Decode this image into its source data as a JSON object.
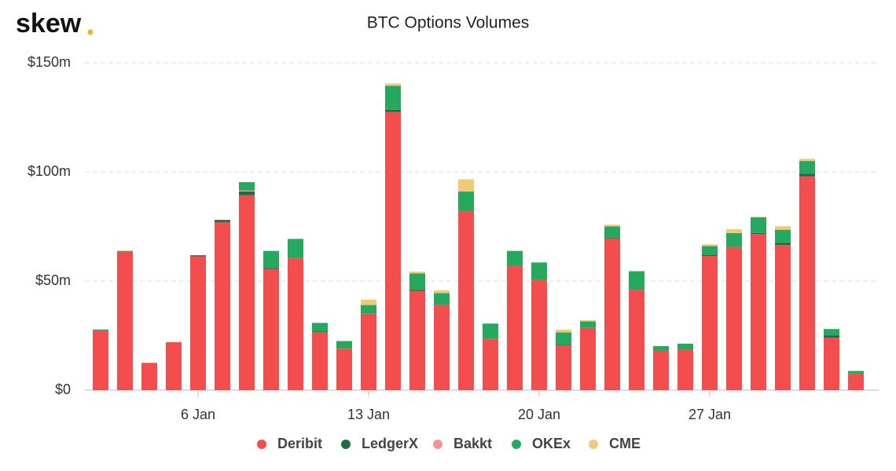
{
  "brand": "skew",
  "chart_data": {
    "type": "bar",
    "stacked": true,
    "title": "BTC Options Volumes",
    "categories": [
      null,
      null,
      null,
      null,
      "6 Jan",
      null,
      null,
      null,
      null,
      null,
      null,
      "13 Jan",
      null,
      null,
      null,
      null,
      null,
      null,
      "20 Jan",
      null,
      null,
      null,
      null,
      null,
      null,
      "27 Jan",
      null,
      null,
      null,
      null,
      null,
      null
    ],
    "series": [
      {
        "name": "Deribit",
        "color": "#f44d4d",
        "values": [
          27.3,
          63.5,
          12.5,
          22,
          61.3,
          77,
          89.3,
          55.5,
          60.5,
          26.5,
          19,
          35,
          127.5,
          45.5,
          39,
          82,
          23.5,
          57,
          50.5,
          20.5,
          28.5,
          69.5,
          46,
          18,
          18.5,
          61.5,
          65.5,
          71.5,
          66.5,
          98,
          24,
          7.5
        ]
      },
      {
        "name": "LedgerX",
        "color": "#1d6b45",
        "values": [
          0,
          0,
          0,
          0,
          0.5,
          1,
          1.7,
          0.5,
          0,
          0.3,
          0,
          0,
          1,
          0.5,
          0,
          0,
          0,
          0,
          0,
          0.3,
          0,
          0.3,
          0,
          0,
          0,
          0.5,
          0,
          0.5,
          1,
          1.2,
          1,
          0
        ]
      },
      {
        "name": "Bakkt",
        "color": "#f29595",
        "values": [
          0,
          0,
          0,
          0,
          0,
          0,
          0.5,
          0,
          0,
          0,
          0,
          0,
          0,
          0,
          0,
          0,
          0,
          0,
          0,
          0,
          0,
          0,
          0,
          0,
          0,
          0,
          0,
          0,
          0,
          0,
          0,
          0
        ]
      },
      {
        "name": "OKEx",
        "color": "#26a95f",
        "values": [
          0.5,
          0.3,
          0,
          0,
          0,
          0,
          3.8,
          7.8,
          8.8,
          4,
          3.5,
          4,
          11,
          7.5,
          5.5,
          9,
          7,
          6.8,
          8,
          5.7,
          3,
          5.2,
          8.5,
          2.2,
          2.8,
          4,
          6.5,
          7.2,
          6,
          5.8,
          3,
          1.3
        ]
      },
      {
        "name": "CME",
        "color": "#f0c97a",
        "values": [
          0,
          0,
          0,
          0,
          0,
          0,
          0,
          0,
          0,
          0,
          0,
          2.5,
          1,
          0.8,
          1.2,
          5.6,
          0,
          0,
          0,
          1.2,
          0.6,
          0.8,
          0,
          0,
          0,
          0.8,
          1.7,
          0.3,
          1.6,
          1,
          0,
          0
        ]
      }
    ],
    "ylim": [
      0,
      150
    ],
    "yticks": [
      {
        "value": 0,
        "label": "$0"
      },
      {
        "value": 50,
        "label": "$50m"
      },
      {
        "value": 100,
        "label": "$100m"
      },
      {
        "value": 150,
        "label": "$150m"
      }
    ],
    "grid": true,
    "legend": "bottom"
  }
}
